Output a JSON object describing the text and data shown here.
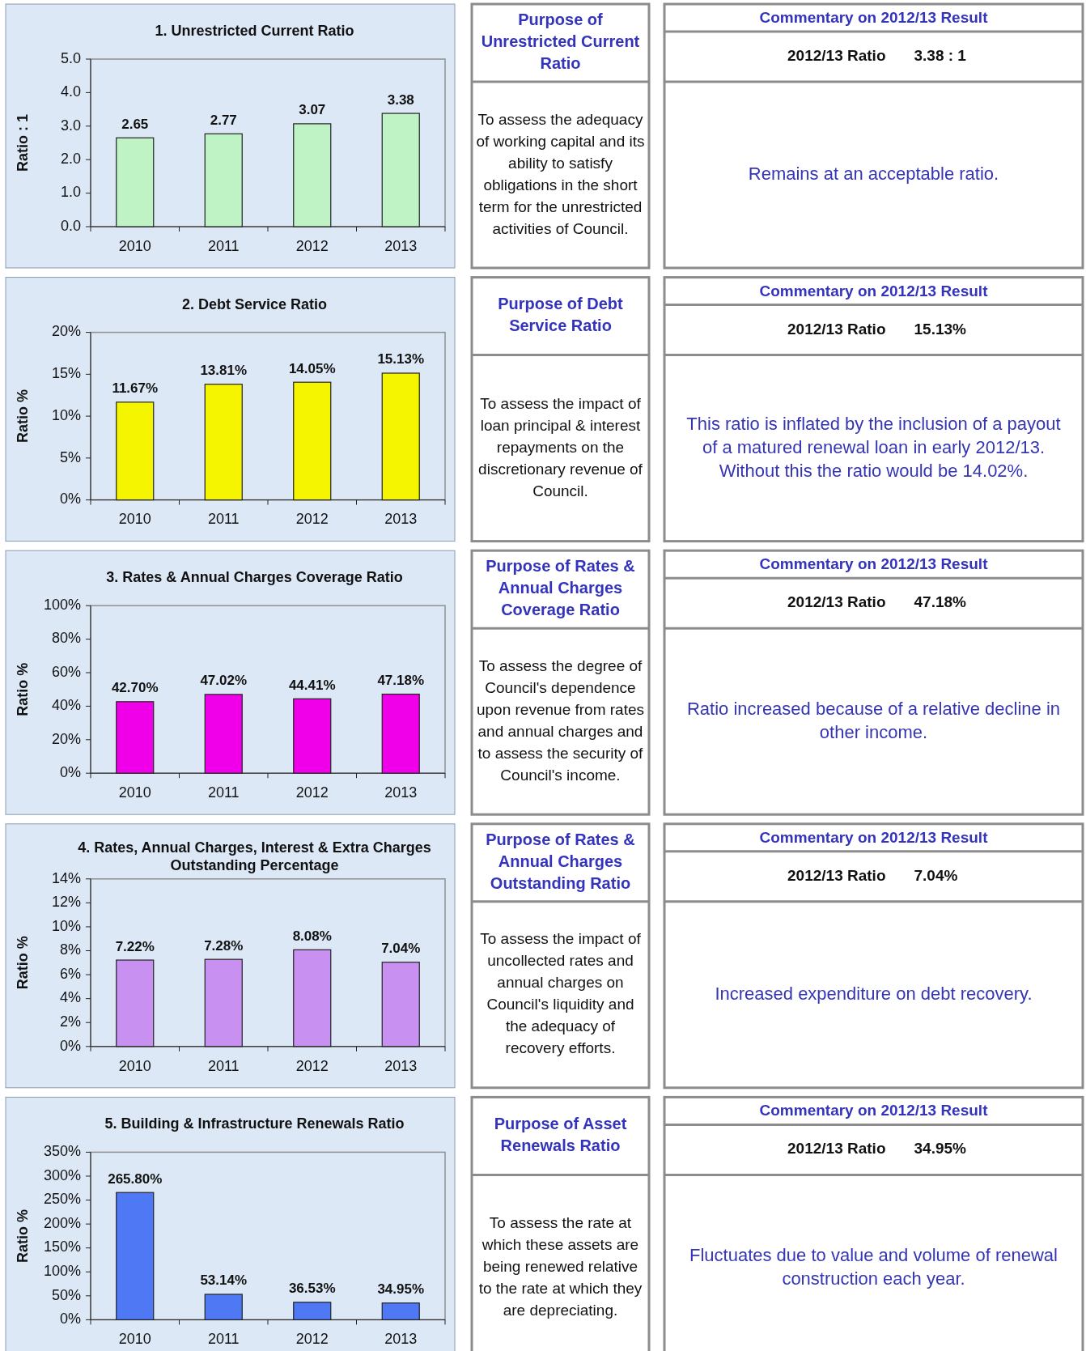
{
  "chart_data": [
    {
      "type": "bar",
      "title": "1. Unrestricted Current Ratio",
      "ylabel": "Ratio : 1",
      "categories": [
        "2010",
        "2011",
        "2012",
        "2013"
      ],
      "values": [
        2.65,
        2.77,
        3.07,
        3.38
      ],
      "value_labels": [
        "2.65",
        "2.77",
        "3.07",
        "3.38"
      ],
      "color": "#bff2c4",
      "ylim": [
        0,
        5
      ],
      "yticks": [
        {
          "value": 0,
          "label": "0.0"
        },
        {
          "value": 1,
          "label": "1.0"
        },
        {
          "value": 2,
          "label": "2.0"
        },
        {
          "value": 3,
          "label": "3.0"
        },
        {
          "value": 4,
          "label": "4.0"
        },
        {
          "value": 5,
          "label": "5.0"
        }
      ]
    },
    {
      "type": "other",
      "title": "Purpose of Unrestricted Current Ratio",
      "annotations": [
        "To assess the adequacy of working capital and its ability to satisfy obligations in the short term for the unrestricted activities of Council."
      ]
    },
    {
      "type": "other",
      "title": "Commentary on 2012/13 Result",
      "subtitle": "2012/13 Ratio",
      "annotations": [
        "3.38 : 1",
        "Remains at an acceptable ratio."
      ]
    },
    {
      "type": "bar",
      "title": "2. Debt Service Ratio",
      "ylabel": "Ratio %",
      "categories": [
        "2010",
        "2011",
        "2012",
        "2013"
      ],
      "values": [
        11.67,
        13.81,
        14.05,
        15.13
      ],
      "value_labels": [
        "11.67%",
        "13.81%",
        "14.05%",
        "15.13%"
      ],
      "color": "#f5f500",
      "ylim": [
        0,
        20
      ],
      "yticks": [
        {
          "value": 0,
          "label": "0%"
        },
        {
          "value": 5,
          "label": "5%"
        },
        {
          "value": 10,
          "label": "10%"
        },
        {
          "value": 15,
          "label": "15%"
        },
        {
          "value": 20,
          "label": "20%"
        }
      ]
    },
    {
      "type": "other",
      "title": "Purpose of Debt Service Ratio",
      "annotations": [
        "To assess the impact of loan principal & interest repayments on the discretionary revenue of Council."
      ]
    },
    {
      "type": "other",
      "title": "Commentary on 2012/13 Result",
      "subtitle": "2012/13 Ratio",
      "annotations": [
        "15.13%",
        "This ratio is inflated by the inclusion of a payout of a matured renewal loan in early 2012/13. Without this the ratio would be 14.02%."
      ]
    },
    {
      "type": "bar",
      "title": "3. Rates & Annual Charges Coverage Ratio",
      "ylabel": "Ratio %",
      "categories": [
        "2010",
        "2011",
        "2012",
        "2013"
      ],
      "values": [
        42.7,
        47.02,
        44.41,
        47.18
      ],
      "value_labels": [
        "42.70%",
        "47.02%",
        "44.41%",
        "47.18%"
      ],
      "color": "#f000e8",
      "ylim": [
        0,
        100
      ],
      "yticks": [
        {
          "value": 0,
          "label": "0%"
        },
        {
          "value": 20,
          "label": "20%"
        },
        {
          "value": 40,
          "label": "40%"
        },
        {
          "value": 60,
          "label": "60%"
        },
        {
          "value": 80,
          "label": "80%"
        },
        {
          "value": 100,
          "label": "100%"
        }
      ]
    },
    {
      "type": "other",
      "title": "Purpose of Rates & Annual Charges Coverage Ratio",
      "annotations": [
        "To assess the degree of Council's dependence upon revenue from rates and annual charges and to assess the security of Council's income."
      ]
    },
    {
      "type": "other",
      "title": "Commentary on 2012/13 Result",
      "subtitle": "2012/13 Ratio",
      "annotations": [
        "47.18%",
        "Ratio increased because of a relative decline in other income."
      ]
    },
    {
      "type": "bar",
      "title": "4. Rates, Annual Charges, Interest & Extra Charges Outstanding Percentage",
      "ylabel": "Ratio %",
      "categories": [
        "2010",
        "2011",
        "2012",
        "2013"
      ],
      "values": [
        7.22,
        7.28,
        8.08,
        7.04
      ],
      "value_labels": [
        "7.22%",
        "7.28%",
        "8.08%",
        "7.04%"
      ],
      "color": "#c890f0",
      "ylim": [
        0,
        14
      ],
      "yticks": [
        {
          "value": 0,
          "label": "0%"
        },
        {
          "value": 2,
          "label": "2%"
        },
        {
          "value": 4,
          "label": "4%"
        },
        {
          "value": 6,
          "label": "6%"
        },
        {
          "value": 8,
          "label": "8%"
        },
        {
          "value": 10,
          "label": "10%"
        },
        {
          "value": 12,
          "label": "12%"
        },
        {
          "value": 14,
          "label": "14%"
        }
      ]
    },
    {
      "type": "other",
      "title": "Purpose of Rates & Annual Charges Outstanding Ratio",
      "annotations": [
        "To assess the impact of uncollected rates and annual charges on Council's liquidity and the adequacy of recovery efforts."
      ]
    },
    {
      "type": "other",
      "title": "Commentary on 2012/13 Result",
      "subtitle": "2012/13 Ratio",
      "annotations": [
        "7.04%",
        "Increased expenditure on debt recovery."
      ]
    },
    {
      "type": "bar",
      "title": "5. Building & Infrastructure Renewals Ratio",
      "ylabel": "Ratio %",
      "categories": [
        "2010",
        "2011",
        "2012",
        "2013"
      ],
      "values": [
        265.8,
        53.14,
        36.53,
        34.95
      ],
      "value_labels": [
        "265.80%",
        "53.14%",
        "36.53%",
        "34.95%"
      ],
      "color": "#4f78f5",
      "ylim": [
        0,
        350
      ],
      "yticks": [
        {
          "value": 0,
          "label": "0%"
        },
        {
          "value": 50,
          "label": "50%"
        },
        {
          "value": 100,
          "label": "100%"
        },
        {
          "value": 150,
          "label": "150%"
        },
        {
          "value": 200,
          "label": "200%"
        },
        {
          "value": 250,
          "label": "250%"
        },
        {
          "value": 300,
          "label": "300%"
        },
        {
          "value": 350,
          "label": "350%"
        }
      ]
    },
    {
      "type": "other",
      "title": "Purpose of Asset Renewals Ratio",
      "annotations": [
        "To assess the rate at which these assets are being renewed relative to the rate at which they are depreciating."
      ]
    },
    {
      "type": "other",
      "title": "Commentary on 2012/13 Result",
      "subtitle": "2012/13 Ratio",
      "annotations": [
        "34.95%",
        "Fluctuates due to value and volume of renewal construction each year."
      ]
    }
  ]
}
